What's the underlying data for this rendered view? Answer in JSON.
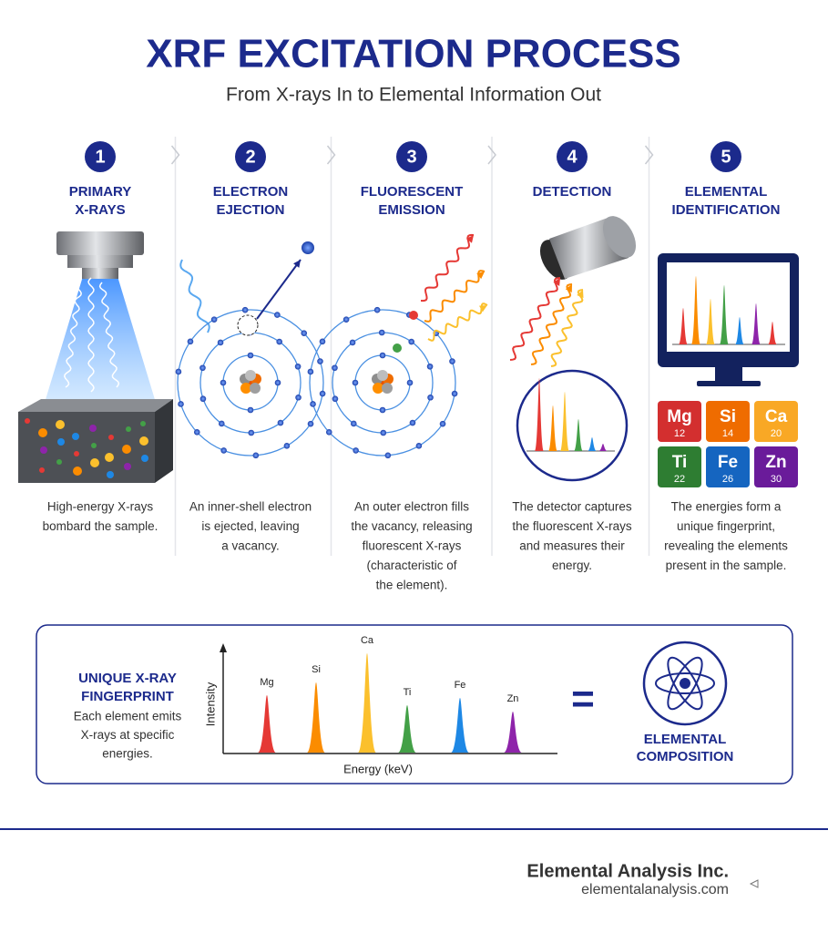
{
  "header": {
    "title": "XRF EXCITATION PROCESS",
    "subtitle": "From X-rays In to Elemental Information Out"
  },
  "steps": [
    {
      "number": 1,
      "title": [
        "PRIMARY",
        "X-RAYS"
      ],
      "description": [
        "High-energy X-rays",
        "bombard the sample."
      ]
    },
    {
      "number": 2,
      "title": [
        "ELECTRON",
        "EJECTION"
      ],
      "description": [
        "An inner-shell electron",
        "is ejected, leaving",
        "a vacancy."
      ]
    },
    {
      "number": 3,
      "title": [
        "FLUORESCENT",
        "EMISSION"
      ],
      "description": [
        "An outer electron fills",
        "the vacancy, releasing",
        "fluorescent X-rays",
        "(characteristic of",
        "the element)."
      ]
    },
    {
      "number": 4,
      "title": [
        "DETECTION"
      ],
      "description": [
        "The detector captures",
        "the fluorescent X-rays",
        "and measures their",
        "energy."
      ]
    },
    {
      "number": 5,
      "title": [
        "ELEMENTAL",
        "IDENTIFICATION"
      ],
      "description": [
        "The energies form a",
        "unique fingerprint,",
        "revealing the elements",
        "present in the sample."
      ]
    }
  ],
  "elements": [
    {
      "symbol": "Mg",
      "number": 12
    },
    {
      "symbol": "Si",
      "number": 14
    },
    {
      "symbol": "Ca",
      "number": 20
    },
    {
      "symbol": "Ti",
      "number": 22
    },
    {
      "symbol": "Fe",
      "number": 26
    },
    {
      "symbol": "Zn",
      "number": 30
    }
  ],
  "fingerprint": {
    "title": [
      "UNIQUE X-RAY",
      "FINGERPRINT"
    ],
    "description": [
      "Each element emits",
      "X-rays at specific",
      "energies."
    ],
    "y_label": "Intensity",
    "x_label": "Energy (keV)",
    "peaks": [
      "Mg",
      "Si",
      "Ca",
      "Ti",
      "Fe",
      "Zn"
    ],
    "equals": "=",
    "result": [
      "ELEMENTAL",
      "COMPOSITION"
    ]
  },
  "footer": {
    "company": "Elemental Analysis Inc.",
    "website": "elementalanalysis.com"
  }
}
